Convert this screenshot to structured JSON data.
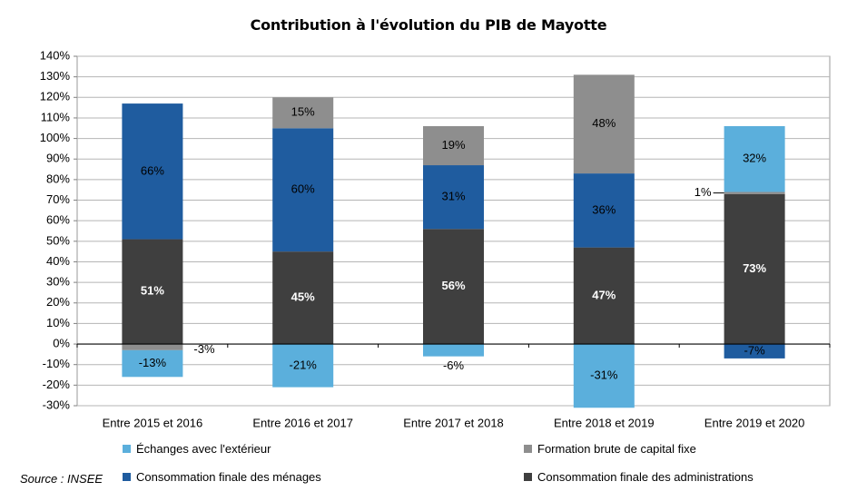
{
  "chart_data": {
    "type": "bar",
    "stacked": true,
    "title": "Contribution à l'évolution du PIB de Mayotte",
    "categories": [
      "Entre 2015 et 2016",
      "Entre 2016 et 2017",
      "Entre 2017 et 2018",
      "Entre 2018 et 2019",
      "Entre 2019 et 2020"
    ],
    "ylim": [
      -30,
      140
    ],
    "yticks": [
      "-30%",
      "-20%",
      "-10%",
      "0%",
      "10%",
      "20%",
      "30%",
      "40%",
      "50%",
      "60%",
      "70%",
      "80%",
      "90%",
      "100%",
      "110%",
      "120%",
      "130%",
      "140%"
    ],
    "grid": true,
    "series": [
      {
        "name": "Consommation finale des administrations",
        "color": "#3f3f3f",
        "values": [
          51,
          45,
          56,
          47,
          73
        ],
        "labels": [
          "51%",
          "45%",
          "56%",
          "47%",
          "73%"
        ]
      },
      {
        "name": "Consommation finale des ménages",
        "color": "#1f5c9f",
        "values": [
          66,
          60,
          31,
          36,
          -7
        ],
        "labels": [
          "66%",
          "60%",
          "31%",
          "36%",
          "-7%"
        ]
      },
      {
        "name": "Formation brute de capital fixe",
        "color": "#8e8e8e",
        "values": [
          -3,
          15,
          19,
          48,
          1
        ],
        "labels": [
          "-3%",
          "15%",
          "19%",
          "48%",
          "1%"
        ]
      },
      {
        "name": "Échanges avec l'extérieur",
        "color": "#5bafdc",
        "values": [
          -13,
          -21,
          -6,
          -31,
          32
        ],
        "labels": [
          "-13%",
          "-21%",
          "-6%",
          "-31%",
          "32%"
        ]
      }
    ],
    "legend_order": [
      "Échanges avec l'extérieur",
      "Formation brute de capital fixe",
      "Consommation finale des ménages",
      "Consommation finale des administrations"
    ]
  },
  "source": "Source : INSEE"
}
